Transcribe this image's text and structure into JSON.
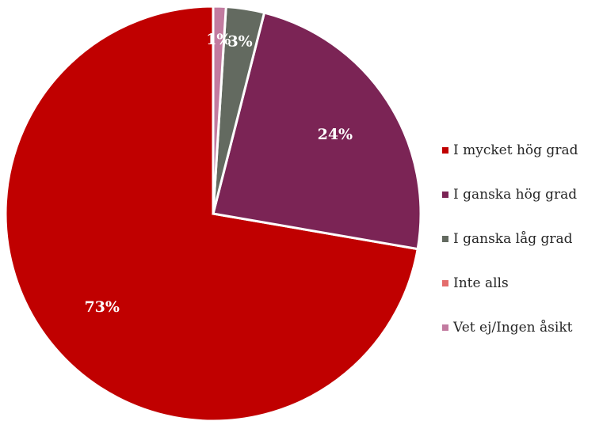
{
  "chart_data": {
    "type": "pie",
    "title": "",
    "categories": [
      "I mycket hög grad",
      "I ganska hög grad",
      "I ganska låg grad",
      "Inte alls",
      "Vet ej/Ingen åsikt"
    ],
    "values": [
      73,
      24,
      3,
      0,
      1
    ],
    "data_labels": [
      "73%",
      "24%",
      "3%",
      "",
      "1%"
    ],
    "colors": [
      "#C00000",
      "#7B2455",
      "#636A60",
      "#E46C6C",
      "#C27BA0"
    ],
    "legend_position": "right"
  }
}
